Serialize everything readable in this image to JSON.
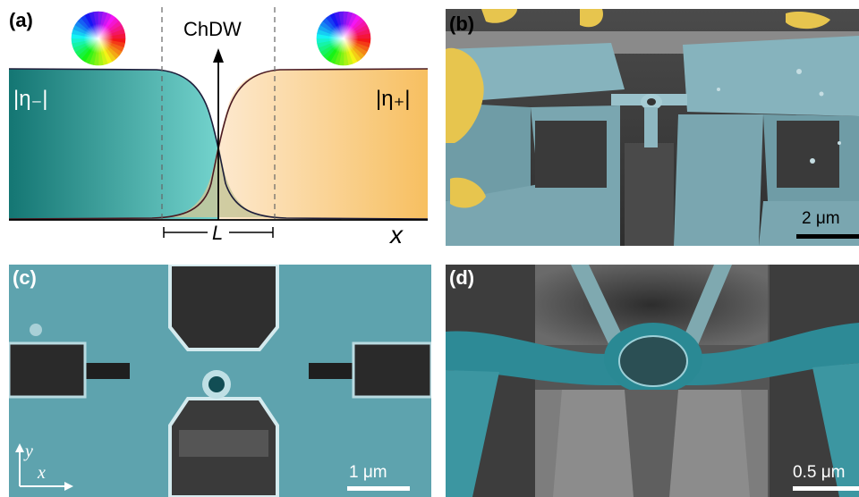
{
  "panels": {
    "a": {
      "label": "(a)",
      "title": "ChDW",
      "left_label": "|η₋|",
      "right_label": "|η₊|",
      "x_label": "x",
      "width_label": "L",
      "colors": {
        "left_fill_dark": "#167a78",
        "left_fill_light": "#6fcfca",
        "right_fill_light": "#fde6c8",
        "right_fill_dark": "#f7c062"
      },
      "icons": [
        "color-wheel-icon",
        "color-wheel-icon"
      ]
    },
    "b": {
      "label": "(b)",
      "scale": "2 μm"
    },
    "c": {
      "label": "(c)",
      "scale": "1 μm",
      "axis_y": "y",
      "axis_x": "x"
    },
    "d": {
      "label": "(d)",
      "scale": "0.5 μm"
    }
  }
}
